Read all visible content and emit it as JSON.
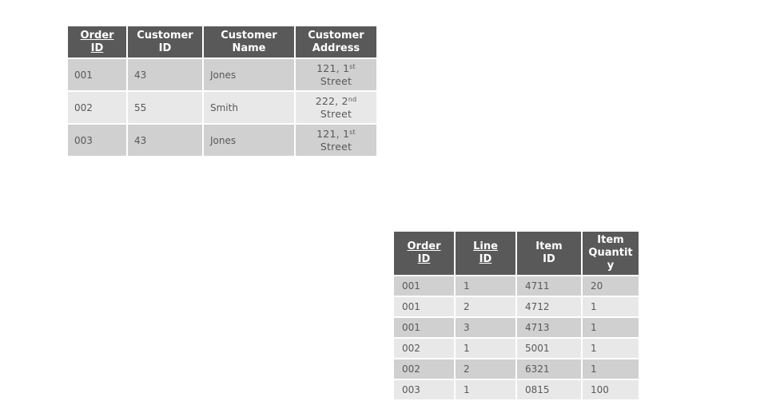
{
  "orders_table": {
    "headers": [
      {
        "line1": "Order",
        "line2": "ID",
        "key": true
      },
      {
        "line1": "Customer",
        "line2": "ID",
        "key": false
      },
      {
        "line1": "Customer",
        "line2": "Name",
        "key": false
      },
      {
        "line1": "Customer",
        "line2": "Address",
        "key": false
      }
    ],
    "rows": [
      {
        "order_id": "001",
        "customer_id": "43",
        "customer_name": "Jones",
        "address_number": "121, 1",
        "address_suffix": "st",
        "address_street": "Street"
      },
      {
        "order_id": "002",
        "customer_id": "55",
        "customer_name": "Smith",
        "address_number": "222, 2",
        "address_suffix": "nd",
        "address_street": "Street"
      },
      {
        "order_id": "003",
        "customer_id": "43",
        "customer_name": "Jones",
        "address_number": "121, 1",
        "address_suffix": "st",
        "address_street": "Street"
      }
    ]
  },
  "lines_table": {
    "headers": [
      {
        "lines": [
          "Order",
          "ID"
        ],
        "key": true
      },
      {
        "lines": [
          "Line",
          "ID"
        ],
        "key": true
      },
      {
        "lines": [
          "Item",
          "ID"
        ],
        "key": false
      },
      {
        "lines": [
          "Item",
          "Quantit",
          "y"
        ],
        "key": false
      }
    ],
    "rows": [
      {
        "order_id": "001",
        "line_id": "1",
        "item_id": "4711",
        "quantity": "20"
      },
      {
        "order_id": "001",
        "line_id": "2",
        "item_id": "4712",
        "quantity": "1"
      },
      {
        "order_id": "001",
        "line_id": "3",
        "item_id": "4713",
        "quantity": "1"
      },
      {
        "order_id": "002",
        "line_id": "1",
        "item_id": "5001",
        "quantity": "1"
      },
      {
        "order_id": "002",
        "line_id": "2",
        "item_id": "6321",
        "quantity": "1"
      },
      {
        "order_id": "003",
        "line_id": "1",
        "item_id": "0815",
        "quantity": "100"
      }
    ]
  }
}
